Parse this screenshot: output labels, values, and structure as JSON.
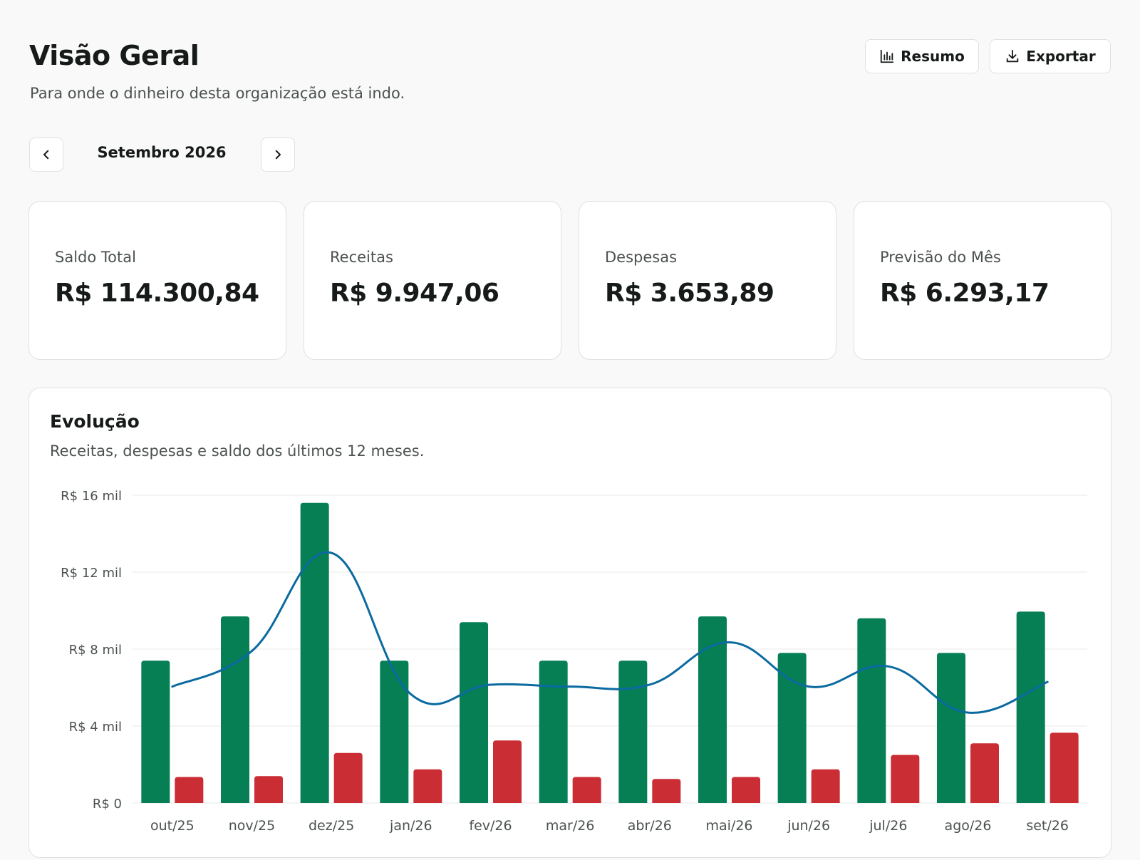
{
  "header": {
    "title": "Visão Geral",
    "subtitle": "Para onde o dinheiro desta organização está indo.",
    "resumo_label": "Resumo",
    "resumo_icon": "bar-chart-icon",
    "exportar_label": "Exportar",
    "exportar_icon": "download-icon"
  },
  "period": {
    "label": "Setembro 2026",
    "prev_icon": "chevron-left-icon",
    "next_icon": "chevron-right-icon"
  },
  "cards": [
    {
      "label": "Saldo Total",
      "value": "R$ 114.300,84"
    },
    {
      "label": "Receitas",
      "value": "R$ 9.947,06"
    },
    {
      "label": "Despesas",
      "value": "R$ 3.653,89"
    },
    {
      "label": "Previsão do Mês",
      "value": "R$ 6.293,17"
    }
  ],
  "chart": {
    "title": "Evolução",
    "subtitle": "Receitas, despesas e saldo dos últimos 12 meses."
  },
  "colors": {
    "receitas": "#067f54",
    "despesas": "#cb2d35",
    "saldo": "#0b6aa0",
    "grid": "#e8eae9",
    "tick": "#4b524e"
  },
  "chart_data": {
    "type": "bar",
    "categories": [
      "out/25",
      "nov/25",
      "dez/25",
      "jan/26",
      "fev/26",
      "mar/26",
      "abr/26",
      "mai/26",
      "jun/26",
      "jul/26",
      "ago/26",
      "set/26"
    ],
    "y_tick_labels": [
      "R$ 0",
      "R$ 4 mil",
      "R$ 8 mil",
      "R$ 12 mil",
      "R$ 16 mil"
    ],
    "y_ticks": [
      0,
      4000,
      8000,
      12000,
      16000
    ],
    "ylim": [
      0,
      16000
    ],
    "grid": true,
    "series": [
      {
        "type": "bar",
        "values": [
          7400,
          9700,
          15600,
          7400,
          9400,
          7400,
          7400,
          9700,
          7800,
          9600,
          7800,
          9947
        ]
      },
      {
        "type": "bar",
        "values": [
          1350,
          1400,
          2600,
          1750,
          3250,
          1350,
          1250,
          1350,
          1750,
          2500,
          3100,
          3654
        ]
      },
      {
        "type": "line",
        "smooth": true,
        "values": [
          6050,
          7900,
          13000,
          5650,
          6150,
          6050,
          6150,
          8350,
          6050,
          7100,
          4700,
          6293
        ]
      }
    ]
  }
}
